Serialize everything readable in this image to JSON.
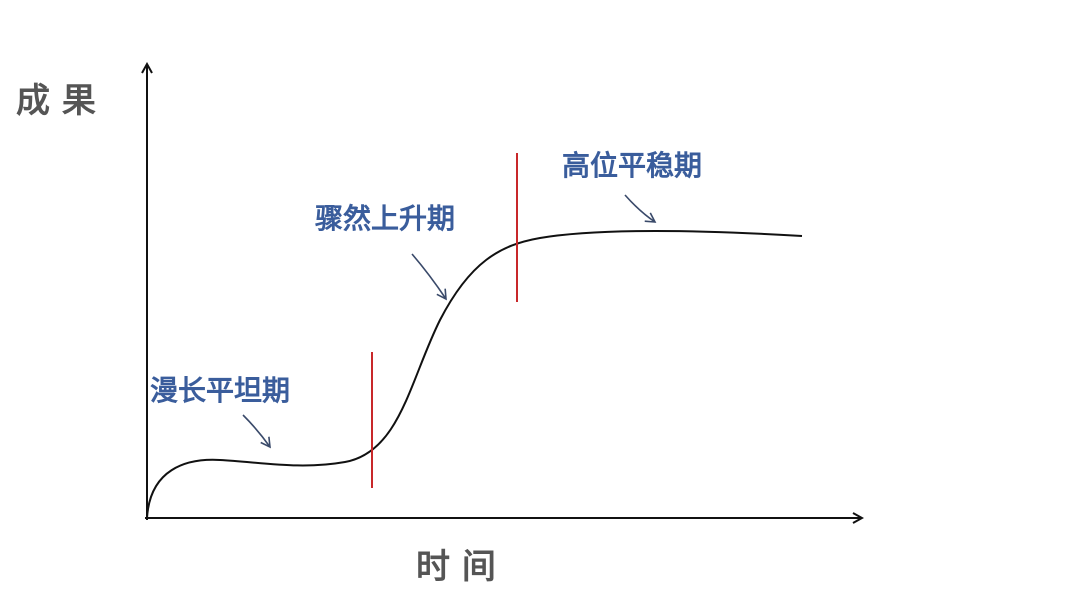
{
  "axes": {
    "y_label": "成 果",
    "x_label": "时 间"
  },
  "phases": [
    {
      "label": "漫长平坦期"
    },
    {
      "label": "骤然上升期"
    },
    {
      "label": "高位平稳期"
    }
  ]
}
